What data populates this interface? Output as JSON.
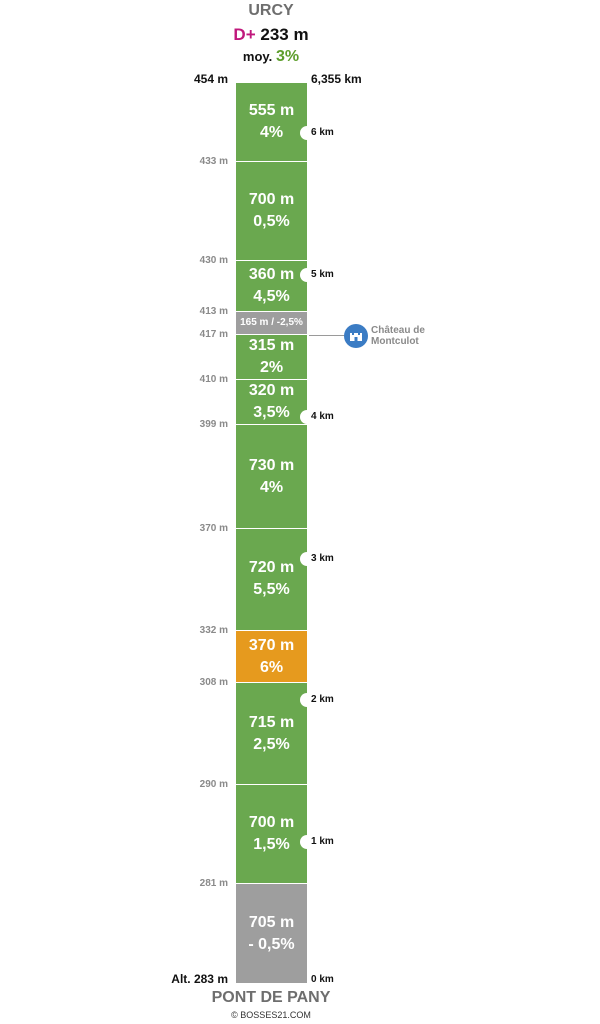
{
  "header": {
    "summit": "URCY",
    "dplus_label": "D+",
    "dplus_value": "233 m",
    "avg_label": "moy.",
    "avg_value": "3%",
    "top_altitude": "454 m",
    "total_distance": "6,355 km"
  },
  "segments": [
    {
      "length": "555 m",
      "grade": "4%",
      "color": "#6aa84f",
      "span_m": 555,
      "alt_below": "433 m"
    },
    {
      "length": "700 m",
      "grade": "0,5%",
      "color": "#6aa84f",
      "span_m": 700,
      "alt_below": "430 m"
    },
    {
      "length": "360 m",
      "grade": "4,5%",
      "color": "#6aa84f",
      "span_m": 360,
      "alt_below": "413 m"
    },
    {
      "length": "165 m",
      "grade": "-2,5%",
      "label": "165 m / -2,5%",
      "color": "#9e9e9e",
      "span_m": 165,
      "small": true,
      "alt_below": "417 m"
    },
    {
      "length": "315 m",
      "grade": "2%",
      "color": "#6aa84f",
      "span_m": 315,
      "alt_below": "410 m"
    },
    {
      "length": "320 m",
      "grade": "3,5%",
      "color": "#6aa84f",
      "span_m": 320,
      "alt_below": "399 m"
    },
    {
      "length": "730 m",
      "grade": "4%",
      "color": "#6aa84f",
      "span_m": 730,
      "alt_below": "370 m"
    },
    {
      "length": "720 m",
      "grade": "5,5%",
      "color": "#6aa84f",
      "span_m": 720,
      "alt_below": "332 m"
    },
    {
      "length": "370 m",
      "grade": "6%",
      "color": "#e69a1e",
      "span_m": 370,
      "alt_below": "308 m"
    },
    {
      "length": "715 m",
      "grade": "2,5%",
      "color": "#6aa84f",
      "span_m": 715,
      "alt_below": "290 m"
    },
    {
      "length": "700 m",
      "grade": "1,5%",
      "color": "#6aa84f",
      "span_m": 700,
      "alt_below": "281 m"
    },
    {
      "length": "705 m",
      "grade": "- 0,5%",
      "color": "#9e9e9e",
      "span_m": 705
    }
  ],
  "km_markers": [
    {
      "label": "6 km",
      "km": 6
    },
    {
      "label": "5 km",
      "km": 5
    },
    {
      "label": "4 km",
      "km": 4
    },
    {
      "label": "3 km",
      "km": 3
    },
    {
      "label": "2 km",
      "km": 2
    },
    {
      "label": "1 km",
      "km": 1
    }
  ],
  "poi": {
    "line1": "Château de",
    "line2": "Montculot",
    "icon": "castle-icon",
    "color": "#3b7cc4"
  },
  "footer": {
    "start_altitude": "Alt. 283 m",
    "start_km": "0 km",
    "start": "PONT DE PANY",
    "copyright": "© BOSSES21.COM"
  }
}
